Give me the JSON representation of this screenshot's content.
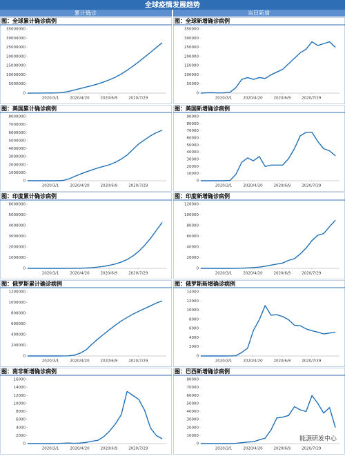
{
  "title": "全球疫情发展趋势",
  "columns": [
    "累计确诊",
    "当日新增"
  ],
  "watermark": "能源研发中心",
  "chart_data": [
    {
      "type": "line",
      "title": "图：全球累计确诊病例",
      "color": "#1f6fb5",
      "x": [
        "2020/1/22",
        "2020/2/1",
        "2020/2/11",
        "2020/2/21",
        "2020/3/2",
        "2020/3/12",
        "2020/3/22",
        "2020/4/1",
        "2020/4/11",
        "2020/4/21",
        "2020/5/1",
        "2020/5/11",
        "2020/5/21",
        "2020/5/31",
        "2020/6/10",
        "2020/6/20",
        "2020/6/30",
        "2020/7/10",
        "2020/7/20",
        "2020/7/30",
        "2020/8/9",
        "2020/8/19",
        "2020/8/29",
        "2020/9/8"
      ],
      "values": [
        0,
        10000,
        40000,
        80000,
        90000,
        130000,
        340000,
        930000,
        1700000,
        2500000,
        3300000,
        4100000,
        5000000,
        6100000,
        7300000,
        8700000,
        10400000,
        12500000,
        14700000,
        17100000,
        19700000,
        22200000,
        24900000,
        27500000
      ],
      "xlim": [
        "2020/1/22",
        "2020/9/15"
      ],
      "xticks": [
        "2020/3/1",
        "2020/4/20",
        "2020/6/9",
        "2020/7/29"
      ],
      "ylim": [
        0,
        35000000
      ],
      "yticks": [
        0,
        5000000,
        10000000,
        15000000,
        20000000,
        25000000,
        30000000,
        35000000
      ]
    },
    {
      "type": "line",
      "title": "图：全球新增确诊病例",
      "color": "#1f6fb5",
      "x": [
        "2020/1/22",
        "2020/2/1",
        "2020/2/11",
        "2020/2/21",
        "2020/3/2",
        "2020/3/12",
        "2020/3/22",
        "2020/4/1",
        "2020/4/11",
        "2020/4/21",
        "2020/5/1",
        "2020/5/11",
        "2020/5/21",
        "2020/5/31",
        "2020/6/10",
        "2020/6/20",
        "2020/6/30",
        "2020/7/10",
        "2020/7/20",
        "2020/7/30",
        "2020/8/9",
        "2020/8/19",
        "2020/8/29",
        "2020/9/8"
      ],
      "values": [
        0,
        2000,
        2500,
        1000,
        2000,
        5000,
        30000,
        75000,
        85000,
        75000,
        85000,
        80000,
        100000,
        115000,
        130000,
        160000,
        190000,
        220000,
        240000,
        280000,
        260000,
        270000,
        280000,
        250000
      ],
      "xlim": [
        "2020/1/22",
        "2020/9/15"
      ],
      "xticks": [
        "2020/3/1",
        "2020/4/20",
        "2020/6/9",
        "2020/7/29"
      ],
      "ylim": [
        0,
        350000
      ],
      "yticks": [
        0,
        50000,
        100000,
        150000,
        200000,
        250000,
        300000,
        350000
      ]
    },
    {
      "type": "line",
      "title": "图：美国累计确诊病例",
      "color": "#1f6fb5",
      "x": [
        "2020/1/22",
        "2020/2/1",
        "2020/2/11",
        "2020/2/21",
        "2020/3/2",
        "2020/3/12",
        "2020/3/22",
        "2020/4/1",
        "2020/4/11",
        "2020/4/21",
        "2020/5/1",
        "2020/5/11",
        "2020/5/21",
        "2020/5/31",
        "2020/6/10",
        "2020/6/20",
        "2020/6/30",
        "2020/7/10",
        "2020/7/20",
        "2020/7/30",
        "2020/8/9",
        "2020/8/19",
        "2020/8/29",
        "2020/9/8"
      ],
      "values": [
        0,
        0,
        0,
        0,
        0,
        1000,
        33000,
        215000,
        530000,
        825000,
        1100000,
        1350000,
        1590000,
        1800000,
        2000000,
        2300000,
        2700000,
        3200000,
        3900000,
        4600000,
        5100000,
        5600000,
        6000000,
        6300000
      ],
      "xlim": [
        "2020/1/22",
        "2020/9/15"
      ],
      "xticks": [
        "2020/3/1",
        "2020/4/20",
        "2020/6/9",
        "2020/7/29"
      ],
      "ylim": [
        0,
        8000000
      ],
      "yticks": [
        0,
        1000000,
        2000000,
        3000000,
        4000000,
        5000000,
        6000000,
        7000000,
        8000000
      ]
    },
    {
      "type": "line",
      "title": "图：美国新增确诊病例",
      "color": "#1f6fb5",
      "x": [
        "2020/1/22",
        "2020/2/1",
        "2020/2/11",
        "2020/2/21",
        "2020/3/2",
        "2020/3/12",
        "2020/3/22",
        "2020/4/1",
        "2020/4/11",
        "2020/4/21",
        "2020/5/1",
        "2020/5/11",
        "2020/5/21",
        "2020/5/31",
        "2020/6/10",
        "2020/6/20",
        "2020/6/30",
        "2020/7/10",
        "2020/7/20",
        "2020/7/30",
        "2020/8/9",
        "2020/8/19",
        "2020/8/29",
        "2020/9/8"
      ],
      "values": [
        0,
        0,
        0,
        0,
        0,
        400,
        9000,
        26000,
        32000,
        28000,
        34000,
        20000,
        22000,
        22000,
        22000,
        31000,
        45000,
        63000,
        68000,
        68000,
        55000,
        45000,
        42000,
        35000
      ],
      "xlim": [
        "2020/1/22",
        "2020/9/15"
      ],
      "xticks": [
        "2020/3/1",
        "2020/4/20",
        "2020/6/9",
        "2020/7/29"
      ],
      "ylim": [
        0,
        90000
      ],
      "yticks": [
        0,
        10000,
        20000,
        30000,
        40000,
        50000,
        60000,
        70000,
        80000,
        90000
      ]
    },
    {
      "type": "line",
      "title": "图：印度累计确诊病例",
      "color": "#1f6fb5",
      "x": [
        "2020/1/22",
        "2020/2/1",
        "2020/2/11",
        "2020/2/21",
        "2020/3/2",
        "2020/3/12",
        "2020/3/22",
        "2020/4/1",
        "2020/4/11",
        "2020/4/21",
        "2020/5/1",
        "2020/5/11",
        "2020/5/21",
        "2020/5/31",
        "2020/6/10",
        "2020/6/20",
        "2020/6/30",
        "2020/7/10",
        "2020/7/20",
        "2020/7/30",
        "2020/8/9",
        "2020/8/19",
        "2020/8/29",
        "2020/9/8"
      ],
      "values": [
        0,
        0,
        0,
        0,
        0,
        70,
        400,
        1900,
        8400,
        20000,
        37000,
        70000,
        118000,
        190000,
        290000,
        410000,
        585000,
        820000,
        1160000,
        1600000,
        2150000,
        2800000,
        3550000,
        4300000
      ],
      "xlim": [
        "2020/1/22",
        "2020/9/15"
      ],
      "xticks": [
        "2020/3/1",
        "2020/4/20",
        "2020/6/9",
        "2020/7/29"
      ],
      "ylim": [
        0,
        6000000
      ],
      "yticks": [
        0,
        1000000,
        2000000,
        3000000,
        4000000,
        5000000,
        6000000
      ]
    },
    {
      "type": "line",
      "title": "图：印度新增确诊病例",
      "color": "#1f6fb5",
      "x": [
        "2020/1/22",
        "2020/2/1",
        "2020/2/11",
        "2020/2/21",
        "2020/3/2",
        "2020/3/12",
        "2020/3/22",
        "2020/4/1",
        "2020/4/11",
        "2020/4/21",
        "2020/5/1",
        "2020/5/11",
        "2020/5/21",
        "2020/5/31",
        "2020/6/10",
        "2020/6/20",
        "2020/6/30",
        "2020/7/10",
        "2020/7/20",
        "2020/7/30",
        "2020/8/9",
        "2020/8/19",
        "2020/8/29",
        "2020/9/8"
      ],
      "values": [
        0,
        0,
        0,
        0,
        0,
        10,
        100,
        400,
        900,
        1500,
        2400,
        4000,
        6000,
        8000,
        10000,
        15000,
        18000,
        27000,
        38000,
        52000,
        62000,
        65000,
        78000,
        90000
      ],
      "xlim": [
        "2020/1/22",
        "2020/9/15"
      ],
      "xticks": [
        "2020/3/1",
        "2020/4/20",
        "2020/6/9",
        "2020/7/29"
      ],
      "ylim": [
        0,
        120000
      ],
      "yticks": [
        0,
        20000,
        40000,
        60000,
        80000,
        100000,
        120000
      ]
    },
    {
      "type": "line",
      "title": "图：俄罗斯累计确诊病例",
      "color": "#1f6fb5",
      "x": [
        "2020/1/22",
        "2020/2/1",
        "2020/2/11",
        "2020/2/21",
        "2020/3/2",
        "2020/3/12",
        "2020/3/22",
        "2020/4/1",
        "2020/4/11",
        "2020/4/21",
        "2020/5/1",
        "2020/5/11",
        "2020/5/21",
        "2020/5/31",
        "2020/6/10",
        "2020/6/20",
        "2020/6/30",
        "2020/7/10",
        "2020/7/20",
        "2020/7/30",
        "2020/8/9",
        "2020/8/19",
        "2020/8/29",
        "2020/9/8"
      ],
      "values": [
        0,
        0,
        0,
        0,
        0,
        30,
        370,
        2800,
        15700,
        52800,
        114000,
        221000,
        317000,
        405000,
        493000,
        577000,
        654000,
        720000,
        783000,
        835000,
        887000,
        938000,
        990000,
        1030000
      ],
      "xlim": [
        "2020/1/22",
        "2020/9/15"
      ],
      "xticks": [
        "2020/3/1",
        "2020/4/20",
        "2020/6/9",
        "2020/7/29"
      ],
      "ylim": [
        0,
        1200000
      ],
      "yticks": [
        0,
        200000,
        400000,
        600000,
        800000,
        1000000,
        1200000
      ]
    },
    {
      "type": "line",
      "title": "图：俄罗斯新增确诊病例",
      "color": "#1f6fb5",
      "x": [
        "2020/1/22",
        "2020/2/1",
        "2020/2/11",
        "2020/2/21",
        "2020/3/2",
        "2020/3/12",
        "2020/3/22",
        "2020/4/1",
        "2020/4/11",
        "2020/4/21",
        "2020/5/1",
        "2020/5/11",
        "2020/5/21",
        "2020/5/31",
        "2020/6/10",
        "2020/6/20",
        "2020/6/30",
        "2020/7/10",
        "2020/7/20",
        "2020/7/30",
        "2020/8/9",
        "2020/8/19",
        "2020/8/29",
        "2020/9/8"
      ],
      "values": [
        0,
        0,
        0,
        0,
        0,
        5,
        50,
        770,
        1700,
        5600,
        7900,
        11000,
        8900,
        9000,
        8600,
        7900,
        6700,
        6600,
        5900,
        5500,
        5200,
        4800,
        5000,
        5200
      ],
      "xlim": [
        "2020/1/22",
        "2020/9/15"
      ],
      "xticks": [
        "2020/3/1",
        "2020/4/20",
        "2020/6/9",
        "2020/7/29"
      ],
      "ylim": [
        0,
        14000
      ],
      "yticks": [
        0,
        2000,
        4000,
        6000,
        8000,
        10000,
        12000,
        14000
      ]
    },
    {
      "type": "line",
      "title": "图：南非新增确诊病例",
      "color": "#1f6fb5",
      "x": [
        "2020/1/22",
        "2020/2/1",
        "2020/2/11",
        "2020/2/21",
        "2020/3/2",
        "2020/3/12",
        "2020/3/22",
        "2020/4/1",
        "2020/4/11",
        "2020/4/21",
        "2020/5/1",
        "2020/5/11",
        "2020/5/21",
        "2020/5/31",
        "2020/6/10",
        "2020/6/20",
        "2020/6/30",
        "2020/7/10",
        "2020/7/20",
        "2020/7/30",
        "2020/8/9",
        "2020/8/19",
        "2020/8/29",
        "2020/9/8"
      ],
      "values": [
        0,
        0,
        0,
        0,
        0,
        4,
        100,
        130,
        70,
        140,
        300,
        600,
        800,
        1700,
        3100,
        4900,
        7200,
        13000,
        12000,
        11000,
        8300,
        3900,
        2000,
        1200
      ],
      "xlim": [
        "2020/1/22",
        "2020/9/15"
      ],
      "xticks": [
        "2020/3/1",
        "2020/4/20",
        "2020/6/9",
        "2020/7/29"
      ],
      "ylim": [
        0,
        16000
      ],
      "yticks": [
        0,
        2000,
        4000,
        6000,
        8000,
        10000,
        12000,
        14000,
        16000
      ]
    },
    {
      "type": "line",
      "title": "图：巴西新增确诊病例",
      "color": "#1f6fb5",
      "x": [
        "2020/1/22",
        "2020/2/1",
        "2020/2/11",
        "2020/2/21",
        "2020/3/2",
        "2020/3/12",
        "2020/3/22",
        "2020/4/1",
        "2020/4/11",
        "2020/4/21",
        "2020/5/1",
        "2020/5/11",
        "2020/5/21",
        "2020/5/31",
        "2020/6/10",
        "2020/6/20",
        "2020/6/30",
        "2020/7/10",
        "2020/7/20",
        "2020/7/30",
        "2020/8/9",
        "2020/8/19",
        "2020/8/29",
        "2020/9/8"
      ],
      "values": [
        0,
        0,
        0,
        0,
        0,
        10,
        400,
        1100,
        1900,
        2300,
        4700,
        6800,
        17000,
        32000,
        33000,
        35000,
        46000,
        42000,
        40000,
        60000,
        50000,
        38000,
        45000,
        20000
      ],
      "xlim": [
        "2020/1/22",
        "2020/9/15"
      ],
      "xticks": [
        "2020/3/1",
        "2020/4/20",
        "2020/6/9",
        "2020/7/29"
      ],
      "ylim": [
        0,
        80000
      ],
      "yticks": [
        0,
        10000,
        20000,
        30000,
        40000,
        50000,
        60000,
        70000,
        80000
      ]
    }
  ]
}
